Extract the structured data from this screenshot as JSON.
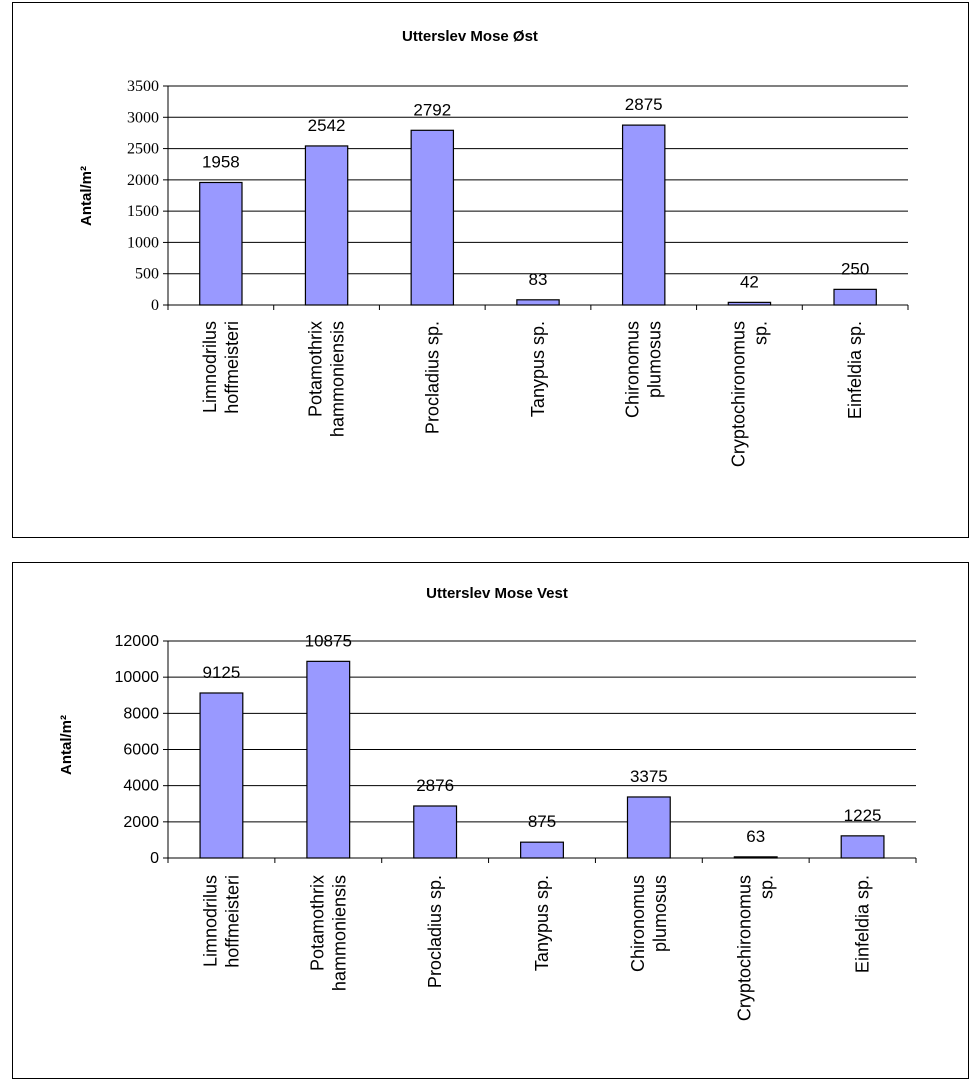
{
  "chart_data": [
    {
      "type": "bar",
      "title": "Utterslev Mose Øst",
      "ylabel": "Antal/m²",
      "xlabel": "",
      "ylim": [
        0,
        3500
      ],
      "yticks": [
        0,
        500,
        1000,
        1500,
        2000,
        2500,
        3000,
        3500
      ],
      "grid": true,
      "legend": false,
      "categories": [
        [
          "Limnodrilus",
          "hoffmeisteri"
        ],
        [
          "Potamothrix",
          "hammoniensis"
        ],
        [
          "Procladius sp."
        ],
        [
          "Tanypus sp."
        ],
        [
          "Chironomus",
          "plumosus"
        ],
        [
          "Cryptochironomus",
          "sp."
        ],
        [
          "Einfeldia sp."
        ]
      ],
      "values": [
        1958,
        2542,
        2792,
        83,
        2875,
        42,
        250
      ],
      "bar_color": "#9999ff"
    },
    {
      "type": "bar",
      "title": "Utterslev Mose Vest",
      "ylabel": "Antal/m²",
      "xlabel": "",
      "ylim": [
        0,
        12000
      ],
      "yticks": [
        0,
        2000,
        4000,
        6000,
        8000,
        10000,
        12000
      ],
      "grid": true,
      "legend": false,
      "categories": [
        [
          "Limnodrilus",
          "hoffmeisteri"
        ],
        [
          "Potamothrix",
          "hammoniensis"
        ],
        [
          "Procladius sp."
        ],
        [
          "Tanypus sp."
        ],
        [
          "Chironomus",
          "plumosus"
        ],
        [
          "Cryptochironomus",
          "sp."
        ],
        [
          "Einfeldia sp."
        ]
      ],
      "values": [
        9125,
        10875,
        2876,
        875,
        3375,
        63,
        1225
      ],
      "bar_color": "#9999ff"
    }
  ]
}
